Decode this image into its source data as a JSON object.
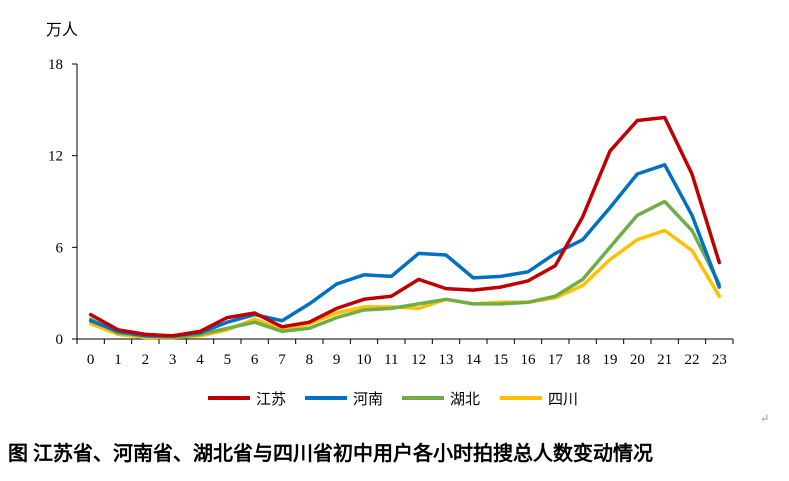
{
  "chart_data": {
    "type": "line",
    "title": "",
    "ylabel_unit": "万人",
    "xlabel": "",
    "ylim": [
      0,
      18
    ],
    "yticks": [
      "0",
      "6",
      "12",
      "18"
    ],
    "categories": [
      "0",
      "1",
      "2",
      "3",
      "4",
      "5",
      "6",
      "7",
      "8",
      "9",
      "10",
      "11",
      "12",
      "13",
      "14",
      "15",
      "16",
      "17",
      "18",
      "19",
      "20",
      "21",
      "22",
      "23"
    ],
    "grid": false,
    "legend_position": "bottom",
    "series": [
      {
        "name": "江苏",
        "color": "#C00000",
        "values": [
          1.6,
          0.6,
          0.3,
          0.2,
          0.5,
          1.4,
          1.7,
          0.8,
          1.1,
          2.0,
          2.6,
          2.8,
          3.9,
          3.3,
          3.2,
          3.4,
          3.8,
          4.8,
          8.0,
          12.3,
          14.3,
          14.5,
          10.8,
          5.0
        ]
      },
      {
        "name": "河南",
        "color": "#0070C0",
        "values": [
          1.2,
          0.5,
          0.2,
          0.2,
          0.4,
          1.1,
          1.6,
          1.2,
          2.3,
          3.6,
          4.2,
          4.1,
          5.6,
          5.5,
          4.0,
          4.1,
          4.4,
          5.6,
          6.5,
          8.6,
          10.8,
          11.4,
          8.1,
          3.4
        ]
      },
      {
        "name": "湖北",
        "color": "#70AD47",
        "values": [
          1.3,
          0.4,
          0.2,
          0.1,
          0.3,
          0.7,
          1.1,
          0.5,
          0.7,
          1.4,
          1.9,
          2.0,
          2.3,
          2.6,
          2.3,
          2.3,
          2.4,
          2.8,
          3.9,
          6.0,
          8.1,
          9.0,
          7.1,
          3.6
        ]
      },
      {
        "name": "四川",
        "color": "#FFC000",
        "values": [
          1.0,
          0.3,
          0.1,
          0.1,
          0.2,
          0.6,
          1.3,
          0.6,
          1.0,
          1.7,
          2.1,
          2.1,
          2.0,
          2.6,
          2.3,
          2.4,
          2.4,
          2.7,
          3.5,
          5.2,
          6.5,
          7.1,
          5.8,
          2.8
        ]
      }
    ]
  },
  "caption": "图  江苏省、河南省、湖北省与四川省初中用户各小时拍搜总人数变动情况",
  "para_mark": "↵"
}
